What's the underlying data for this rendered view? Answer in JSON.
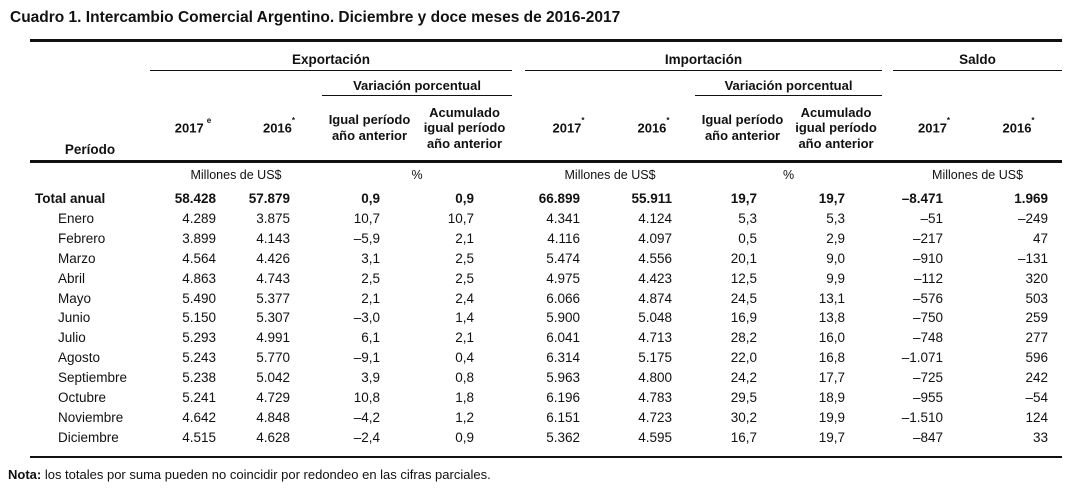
{
  "title": "Cuadro 1. Intercambio Comercial Argentino. Diciembre y doce meses de 2016-2017",
  "table": {
    "period_header": "Período",
    "groups": {
      "exportacion": "Exportación",
      "importacion": "Importación",
      "saldo": "Saldo",
      "variacion": "Variación porcentual"
    },
    "col_headers": {
      "y2017": "2017",
      "y2016": "2016",
      "sup_e": "e",
      "sup_star": "*",
      "igual": "Igual período\naño anterior",
      "acumulado": "Acumulado\nigual período\naño anterior"
    },
    "units": {
      "millones": "Millones de US$",
      "pct": "%"
    },
    "rows": [
      {
        "period": "Total anual",
        "bold": true,
        "values": [
          "58.428",
          "57.879",
          "0,9",
          "0,9",
          "66.899",
          "55.911",
          "19,7",
          "19,7",
          "–8.471",
          "1.969"
        ]
      },
      {
        "period": "Enero",
        "bold": false,
        "values": [
          "4.289",
          "3.875",
          "10,7",
          "10,7",
          "4.341",
          "4.124",
          "5,3",
          "5,3",
          "–51",
          "–249"
        ]
      },
      {
        "period": "Febrero",
        "bold": false,
        "values": [
          "3.899",
          "4.143",
          "–5,9",
          "2,1",
          "4.116",
          "4.097",
          "0,5",
          "2,9",
          "–217",
          "47"
        ]
      },
      {
        "period": "Marzo",
        "bold": false,
        "values": [
          "4.564",
          "4.426",
          "3,1",
          "2,5",
          "5.474",
          "4.556",
          "20,1",
          "9,0",
          "–910",
          "–131"
        ]
      },
      {
        "period": "Abril",
        "bold": false,
        "values": [
          "4.863",
          "4.743",
          "2,5",
          "2,5",
          "4.975",
          "4.423",
          "12,5",
          "9,9",
          "–112",
          "320"
        ]
      },
      {
        "period": "Mayo",
        "bold": false,
        "values": [
          "5.490",
          "5.377",
          "2,1",
          "2,4",
          "6.066",
          "4.874",
          "24,5",
          "13,1",
          "–576",
          "503"
        ]
      },
      {
        "period": "Junio",
        "bold": false,
        "values": [
          "5.150",
          "5.307",
          "–3,0",
          "1,4",
          "5.900",
          "5.048",
          "16,9",
          "13,8",
          "–750",
          "259"
        ]
      },
      {
        "period": "Julio",
        "bold": false,
        "values": [
          "5.293",
          "4.991",
          "6,1",
          "2,1",
          "6.041",
          "4.713",
          "28,2",
          "16,0",
          "–748",
          "277"
        ]
      },
      {
        "period": "Agosto",
        "bold": false,
        "values": [
          "5.243",
          "5.770",
          "–9,1",
          "0,4",
          "6.314",
          "5.175",
          "22,0",
          "16,8",
          "–1.071",
          "596"
        ]
      },
      {
        "period": "Septiembre",
        "bold": false,
        "values": [
          "5.238",
          "5.042",
          "3,9",
          "0,8",
          "5.963",
          "4.800",
          "24,2",
          "17,7",
          "–725",
          "242"
        ]
      },
      {
        "period": "Octubre",
        "bold": false,
        "values": [
          "5.241",
          "4.729",
          "10,8",
          "1,8",
          "6.196",
          "4.783",
          "29,5",
          "18,9",
          "–955",
          "–54"
        ]
      },
      {
        "period": "Noviembre",
        "bold": false,
        "values": [
          "4.642",
          "4.848",
          "–4,2",
          "1,2",
          "6.151",
          "4.723",
          "30,2",
          "19,9",
          "–1.510",
          "124"
        ]
      },
      {
        "period": "Diciembre",
        "bold": false,
        "values": [
          "4.515",
          "4.628",
          "–2,4",
          "0,9",
          "5.362",
          "4.595",
          "16,7",
          "19,7",
          "–847",
          "33"
        ]
      }
    ]
  },
  "note": {
    "label": "Nota:",
    "text": " los totales por suma pueden no coincidir por redondeo en las cifras parciales."
  }
}
